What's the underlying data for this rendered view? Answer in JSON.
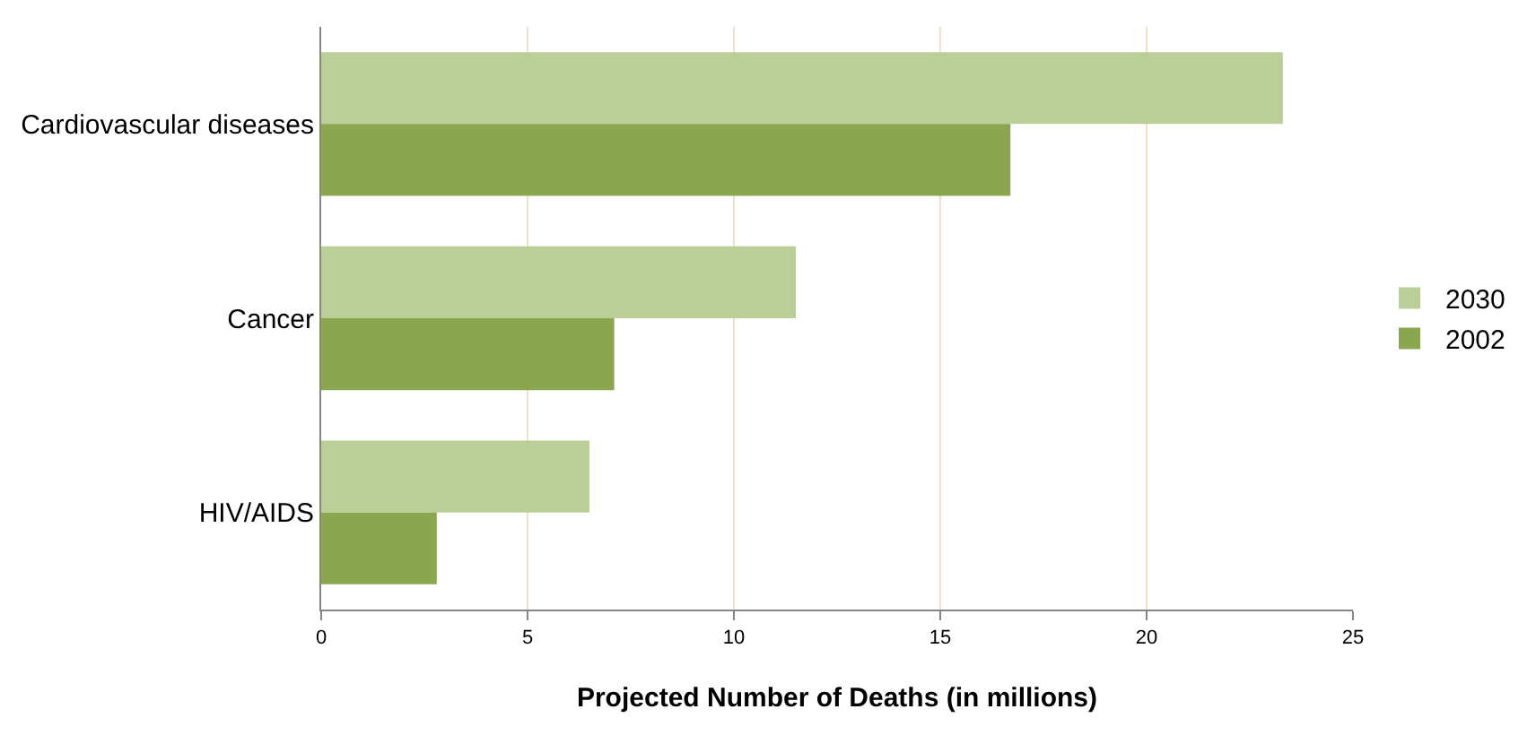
{
  "chart_data": {
    "type": "bar",
    "orientation": "horizontal",
    "xlabel": "Projected Number of Deaths (in millions)",
    "categories": [
      "Cardiovascular diseases",
      "Cancer",
      "HIV/AIDS"
    ],
    "series": [
      {
        "name": "2030",
        "color": "#bacf98",
        "values": [
          23.3,
          11.5,
          6.5
        ]
      },
      {
        "name": "2002",
        "color": "#8aa64f",
        "values": [
          16.7,
          7.1,
          2.8
        ]
      }
    ],
    "xlim": [
      0,
      25
    ],
    "xticks": [
      0,
      5,
      10,
      15,
      20,
      25
    ],
    "grid": "x",
    "legend": "right"
  }
}
